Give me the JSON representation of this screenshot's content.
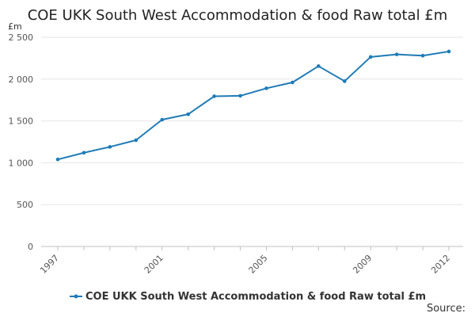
{
  "chart_data": {
    "type": "line",
    "title": "COE UKK South West Accommodation & food Raw total £m",
    "ylabel": "£m",
    "xlabel": "",
    "ylim": [
      0,
      2500
    ],
    "yticks": [
      0,
      500,
      1000,
      1500,
      2000,
      2500
    ],
    "ytick_labels": [
      "0",
      "500",
      "1 000",
      "1 500",
      "2 000",
      "2 500"
    ],
    "xtick_labels": [
      "1997",
      "2001",
      "2005",
      "2009",
      "2012"
    ],
    "x": [
      1997,
      1998,
      1999,
      2000,
      2001,
      2002,
      2003,
      2004,
      2005,
      2006,
      2007,
      2008,
      2009,
      2010,
      2011,
      2012
    ],
    "series": [
      {
        "name": "COE UKK South West Accommodation & food Raw total £m",
        "color": "#1f7bb6",
        "values": [
          1040,
          1120,
          1190,
          1270,
          1515,
          1580,
          1795,
          1800,
          1890,
          1960,
          2155,
          1975,
          2265,
          2295,
          2280,
          2330
        ]
      }
    ],
    "legend": "bottom",
    "grid": true
  },
  "source_label": "Source:"
}
